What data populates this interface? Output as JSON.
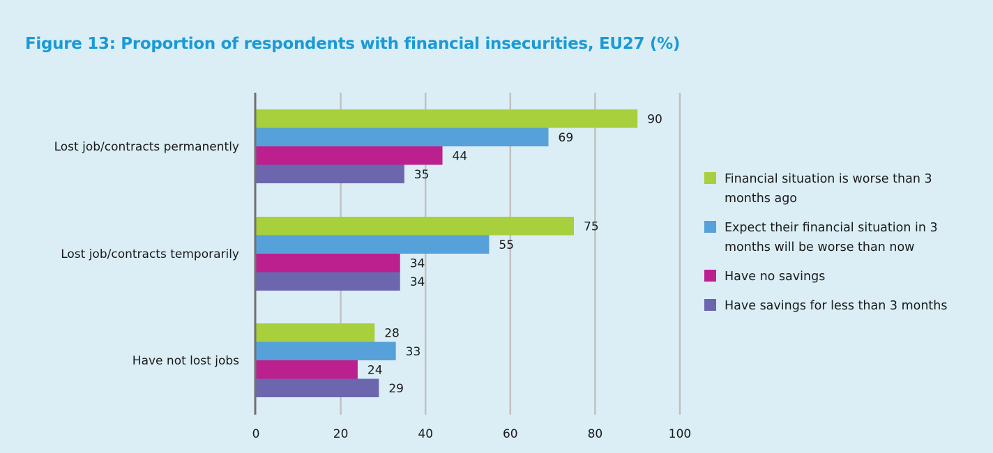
{
  "chart_data": {
    "type": "bar",
    "orientation": "horizontal",
    "title": "Figure 13: Proportion of respondents with financial insecurities, EU27 (%)",
    "categories": [
      "Lost job/contracts permanently",
      "Lost job/contracts temporarily",
      "Have not lost jobs"
    ],
    "series": [
      {
        "name": "Financial situation is worse than 3 months ago",
        "color": "#a8cf3c",
        "values": [
          90,
          75,
          28
        ]
      },
      {
        "name": "Expect their financial situation in 3 months will be worse than now",
        "color": "#56a1d9",
        "values": [
          69,
          55,
          33
        ]
      },
      {
        "name": "Have no savings",
        "color": "#bc208f",
        "values": [
          44,
          34,
          24
        ]
      },
      {
        "name": "Have savings for less than 3 months",
        "color": "#6c66ae",
        "values": [
          35,
          34,
          29
        ]
      }
    ],
    "xlim": [
      0,
      100
    ],
    "xticks": [
      "0",
      "20",
      "40",
      "60",
      "80",
      "100"
    ],
    "grid": true,
    "legend_position": "right",
    "colors": {
      "background": "#dbeef6",
      "title": "#1a9ad6",
      "grid": "#c0c0c0",
      "axis": "#707070"
    }
  }
}
